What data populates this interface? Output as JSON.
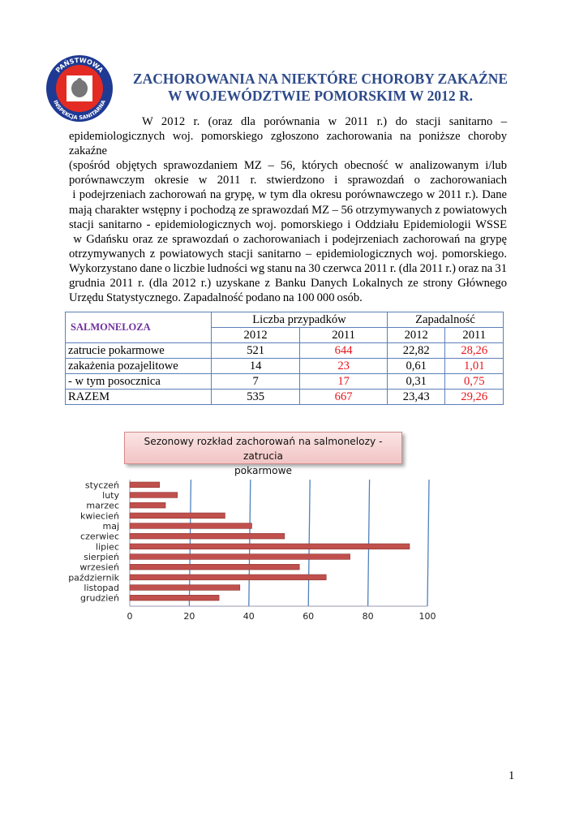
{
  "logo": {
    "text_top": "PAŃSTWOWA",
    "text_bottom": "INSPEKCJA SANITARNA",
    "colors": {
      "ring": "#1f3a93",
      "inner": "#e32b24"
    }
  },
  "title": {
    "line1": "ZACHOROWANIA NA NIEKTÓRE CHOROBY ZAKAŹNE",
    "line2": "W WOJEWÓDZTWIE POMORSKIM W 2012  R."
  },
  "paragraph_lines": [
    "W 2012 r. (oraz dla porównania w 2011 r.) do stacji sanitarno –",
    "epidemiologicznych woj. pomorskiego zgłoszono zachorowania na poniższe choroby zakaźne",
    "(spośród objętych sprawozdaniem MZ – 56, których obecność w analizowanym i/lub",
    "porównawczym okresie w 2011 r. stwierdzono i sprawozdań o zachorowaniach",
    " i podejrzeniach zachorowań na grypę, w tym dla okresu porównawczego w 2011 r.). Dane",
    "mają charakter wstępny i pochodzą ze sprawozdań MZ – 56 otrzymywanych z powiatowych",
    "stacji sanitarno - epidemiologicznych woj. pomorskiego i Oddziału Epidemiologii WSSE",
    " w Gdańsku oraz ze sprawozdań o zachorowaniach i podejrzeniach zachorowań na grypę",
    "otrzymywanych z powiatowych stacji sanitarno – epidemiologicznych woj. pomorskiego.",
    "Wykorzystano dane o liczbie ludności wg stanu na 30 czerwca 2011 r. (dla 2011 r.) oraz na 31",
    "grudnia 2011 r. (dla 2012 r.) uzyskane z Banku Danych Lokalnych ze strony Głównego",
    "Urzędu Statystycznego. Zapadalność podano na 100 000 osób."
  ],
  "table": {
    "row_header": "SALMONELOZA",
    "group_headers": [
      "Liczba przypadków",
      "Zapadalność"
    ],
    "years": [
      "2012",
      "2011",
      "2012",
      "2011"
    ],
    "rows": [
      {
        "label": "zatrucie pokarmowe",
        "values": [
          "521",
          "644",
          "22,82",
          "28,26"
        ]
      },
      {
        "label": "zakażenia pozajelitowe",
        "values": [
          "14",
          "23",
          "0,61",
          "1,01"
        ]
      },
      {
        "label": "- w tym posocznica",
        "values": [
          "7",
          "17",
          "0,31",
          "0,75"
        ]
      },
      {
        "label": "RAZEM",
        "values": [
          "535",
          "667",
          "23,43",
          "29,26"
        ]
      }
    ],
    "colors": {
      "year_2011": "#e8141b",
      "header": "#7030a0",
      "border": "#5b7fb9"
    }
  },
  "chart_data": {
    "type": "bar",
    "orientation": "horizontal",
    "title": "Sezonowy rozkład zachorowań na salmonelozy - zatrucia pokarmowe",
    "title_lines": [
      "Sezonowy rozkład zachorowań na salmonelozy - zatrucia",
      "pokarmowe"
    ],
    "categories": [
      "styczeń",
      "luty",
      "marzec",
      "kwiecień",
      "maj",
      "czerwiec",
      "lipiec",
      "sierpień",
      "wrzesień",
      "październik",
      "listopad",
      "grudzień"
    ],
    "values": [
      10,
      16,
      12,
      32,
      41,
      52,
      94,
      74,
      57,
      66,
      37,
      30
    ],
    "xlim": [
      0,
      100
    ],
    "xticks": [
      "0",
      "20",
      "40",
      "60",
      "80",
      "100"
    ],
    "grid": true,
    "colors": {
      "bar": "#c0504d",
      "grid": "#4f81bd"
    }
  },
  "page_number": "1"
}
